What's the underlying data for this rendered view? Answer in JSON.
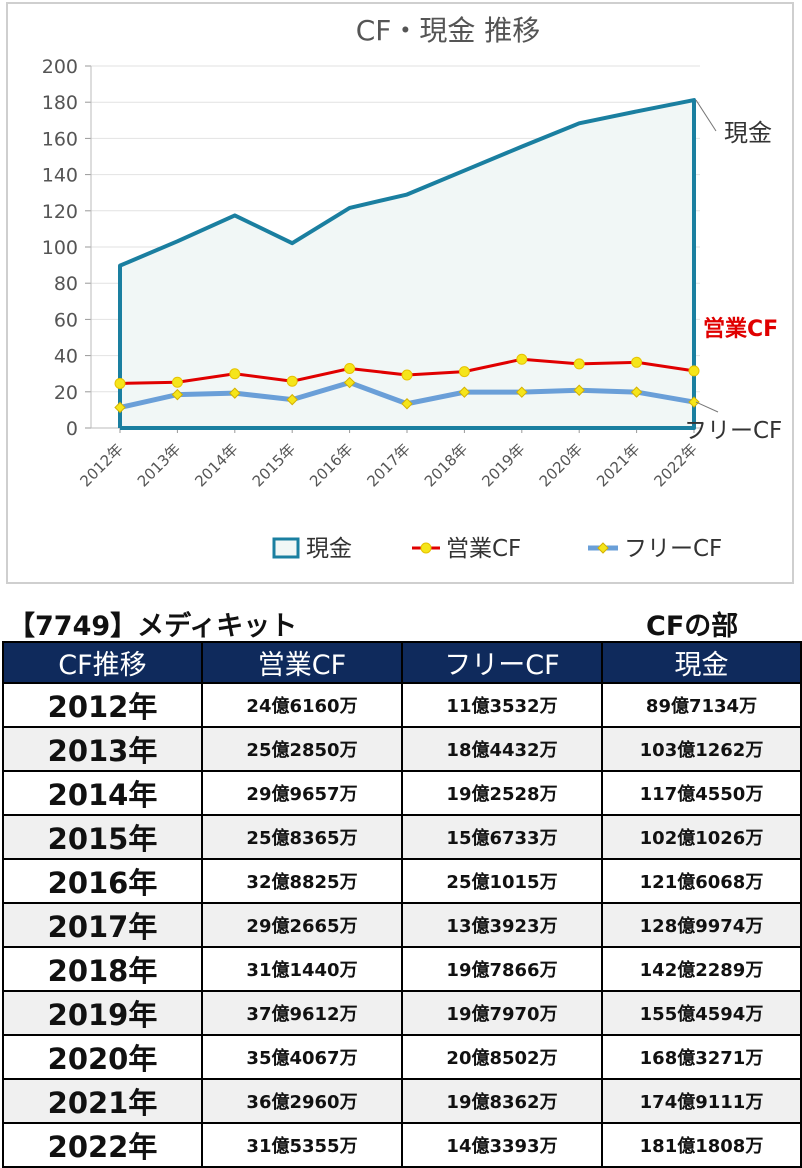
{
  "chart_data": {
    "type": "line",
    "title": "CF・現金 推移",
    "categories": [
      "2012年",
      "2013年",
      "2014年",
      "2015年",
      "2016年",
      "2017年",
      "2018年",
      "2019年",
      "2020年",
      "2021年",
      "2022年"
    ],
    "ylim": [
      0,
      200
    ],
    "yticks": [
      0,
      20,
      40,
      60,
      80,
      100,
      120,
      140,
      160,
      180,
      200
    ],
    "grid": true,
    "legend_position": "bottom",
    "series": [
      {
        "name": "現金",
        "style": "area",
        "color": "#1a7fa0",
        "fill": "#f1f7f6",
        "values": [
          89.7134,
          103.1262,
          117.455,
          102.1026,
          121.6068,
          128.9974,
          142.2289,
          155.4594,
          168.3271,
          174.9111,
          181.1808
        ]
      },
      {
        "name": "営業CF",
        "style": "line-marker",
        "color": "#e00000",
        "marker": "#f5e51a",
        "values": [
          24.616,
          25.285,
          29.9657,
          25.8365,
          32.8825,
          29.2665,
          31.144,
          37.9612,
          35.4067,
          36.296,
          31.5355
        ]
      },
      {
        "name": "フリーCF",
        "style": "line-marker",
        "color": "#6a9fd8",
        "marker": "#f5e51a",
        "values": [
          11.3532,
          18.4432,
          19.2528,
          15.6733,
          25.1015,
          13.3923,
          19.7866,
          19.797,
          20.8502,
          19.8362,
          14.3393
        ]
      }
    ],
    "end_labels": [
      "現金",
      "営業CF",
      "フリーCF"
    ]
  },
  "table": {
    "company": "【7749】メディキット",
    "section": "CFの部",
    "headers": [
      "CF推移",
      "営業CF",
      "フリーCF",
      "現金"
    ],
    "rows": [
      [
        "2012年",
        "24億6160万",
        "11億3532万",
        "89億7134万"
      ],
      [
        "2013年",
        "25億2850万",
        "18億4432万",
        "103億1262万"
      ],
      [
        "2014年",
        "29億9657万",
        "19億2528万",
        "117億4550万"
      ],
      [
        "2015年",
        "25億8365万",
        "15億6733万",
        "102億1026万"
      ],
      [
        "2016年",
        "32億8825万",
        "25億1015万",
        "121億6068万"
      ],
      [
        "2017年",
        "29億2665万",
        "13億3923万",
        "128億9974万"
      ],
      [
        "2018年",
        "31億1440万",
        "19億7866万",
        "142億2289万"
      ],
      [
        "2019年",
        "37億9612万",
        "19億7970万",
        "155億4594万"
      ],
      [
        "2020年",
        "35億4067万",
        "20億8502万",
        "168億3271万"
      ],
      [
        "2021年",
        "36億2960万",
        "19億8362万",
        "174億9111万"
      ],
      [
        "2022年",
        "31億5355万",
        "14億3393万",
        "181億1808万"
      ]
    ]
  }
}
